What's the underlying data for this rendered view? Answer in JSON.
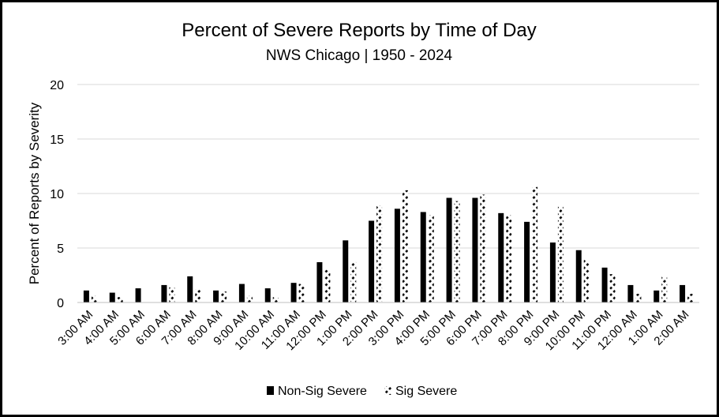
{
  "chart_data": {
    "type": "bar",
    "title": "Percent of Severe Reports by Time of Day",
    "subtitle": "NWS Chicago | 1950 - 2024",
    "ylabel": "Percent of Reports by Severity",
    "xlabel": "",
    "ylim": [
      0,
      20
    ],
    "yticks": [
      0,
      5,
      10,
      15,
      20
    ],
    "grid": true,
    "legend_position": "bottom",
    "categories": [
      "3:00 AM",
      "4:00 AM",
      "5:00 AM",
      "6:00 AM",
      "7:00 AM",
      "8:00 AM",
      "9:00 AM",
      "10:00 AM",
      "11:00 AM",
      "12:00 PM",
      "1:00 PM",
      "2:00 PM",
      "3:00 PM",
      "4:00 PM",
      "5:00 PM",
      "6:00 PM",
      "7:00 PM",
      "8:00 PM",
      "9:00 PM",
      "10:00 PM",
      "11:00 PM",
      "12:00 AM",
      "1:00 AM",
      "2:00 AM"
    ],
    "series": [
      {
        "name": "Non-Sig Severe",
        "color": "#000000",
        "pattern": "solid",
        "values": [
          1.1,
          0.9,
          1.3,
          1.6,
          2.4,
          1.1,
          1.7,
          1.3,
          1.8,
          3.7,
          5.7,
          7.5,
          8.6,
          8.3,
          9.6,
          9.6,
          8.2,
          7.4,
          5.5,
          4.8,
          3.2,
          1.6,
          1.1,
          1.6
        ]
      },
      {
        "name": "Sig Severe",
        "color": "#000000",
        "pattern": "diagonal-dash",
        "values": [
          0.6,
          0.5,
          0.0,
          1.4,
          1.2,
          1.0,
          0.6,
          0.5,
          1.7,
          3.0,
          3.7,
          8.9,
          10.3,
          8.0,
          9.3,
          9.9,
          8.0,
          10.6,
          8.8,
          3.9,
          2.6,
          0.8,
          2.4,
          0.8
        ]
      }
    ]
  }
}
